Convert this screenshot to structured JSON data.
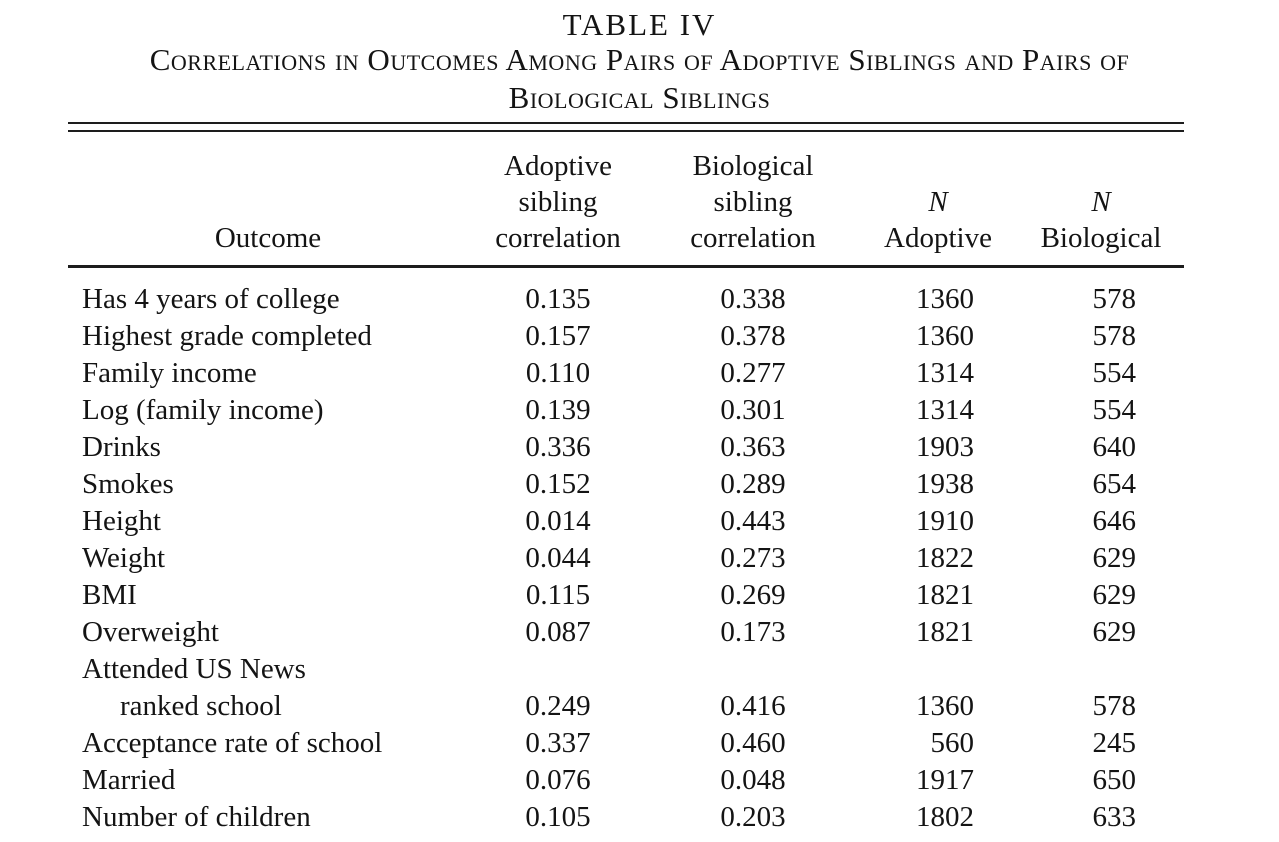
{
  "title": "TABLE IV",
  "subtitle_line1": "Correlations in Outcomes Among Pairs of Adoptive Siblings and Pairs of",
  "subtitle_line2": "Biological Siblings",
  "colors": {
    "text": "#141414",
    "rule": "#1d1d1d",
    "background": "#ffffff"
  },
  "table": {
    "columns": [
      {
        "lines": [
          "Outcome"
        ]
      },
      {
        "lines": [
          "Adoptive",
          "sibling",
          "correlation"
        ]
      },
      {
        "lines": [
          "Biological",
          "sibling",
          "correlation"
        ]
      },
      {
        "italic_line": "N",
        "line2": "Adoptive"
      },
      {
        "italic_line": "N",
        "line2": "Biological"
      }
    ],
    "rows": [
      {
        "outcome": "Has 4 years of college",
        "indent": false,
        "adoptive": "0.135",
        "biological": "0.338",
        "n_adoptive": "1360",
        "n_biological": "578"
      },
      {
        "outcome": "Highest grade completed",
        "indent": false,
        "adoptive": "0.157",
        "biological": "0.378",
        "n_adoptive": "1360",
        "n_biological": "578"
      },
      {
        "outcome": "Family income",
        "indent": false,
        "adoptive": "0.110",
        "biological": "0.277",
        "n_adoptive": "1314",
        "n_biological": "554"
      },
      {
        "outcome": "Log (family income)",
        "indent": false,
        "adoptive": "0.139",
        "biological": "0.301",
        "n_adoptive": "1314",
        "n_biological": "554"
      },
      {
        "outcome": "Drinks",
        "indent": false,
        "adoptive": "0.336",
        "biological": "0.363",
        "n_adoptive": "1903",
        "n_biological": "640"
      },
      {
        "outcome": "Smokes",
        "indent": false,
        "adoptive": "0.152",
        "biological": "0.289",
        "n_adoptive": "1938",
        "n_biological": "654"
      },
      {
        "outcome": "Height",
        "indent": false,
        "adoptive": "0.014",
        "biological": "0.443",
        "n_adoptive": "1910",
        "n_biological": "646"
      },
      {
        "outcome": "Weight",
        "indent": false,
        "adoptive": "0.044",
        "biological": "0.273",
        "n_adoptive": "1822",
        "n_biological": "629"
      },
      {
        "outcome": "BMI",
        "indent": false,
        "adoptive": "0.115",
        "biological": "0.269",
        "n_adoptive": "1821",
        "n_biological": "629"
      },
      {
        "outcome": "Overweight",
        "indent": false,
        "adoptive": "0.087",
        "biological": "0.173",
        "n_adoptive": "1821",
        "n_biological": "629"
      },
      {
        "outcome": "Attended US News",
        "indent": false,
        "adoptive": "",
        "biological": "",
        "n_adoptive": "",
        "n_biological": ""
      },
      {
        "outcome": "ranked school",
        "indent": true,
        "adoptive": "0.249",
        "biological": "0.416",
        "n_adoptive": "1360",
        "n_biological": "578"
      },
      {
        "outcome": "Acceptance rate of school",
        "indent": false,
        "adoptive": "0.337",
        "biological": "0.460",
        "n_adoptive": "560",
        "n_biological": "245"
      },
      {
        "outcome": "Married",
        "indent": false,
        "adoptive": "0.076",
        "biological": "0.048",
        "n_adoptive": "1917",
        "n_biological": "650"
      },
      {
        "outcome": "Number of children",
        "indent": false,
        "adoptive": "0.105",
        "biological": "0.203",
        "n_adoptive": "1802",
        "n_biological": "633"
      }
    ]
  }
}
